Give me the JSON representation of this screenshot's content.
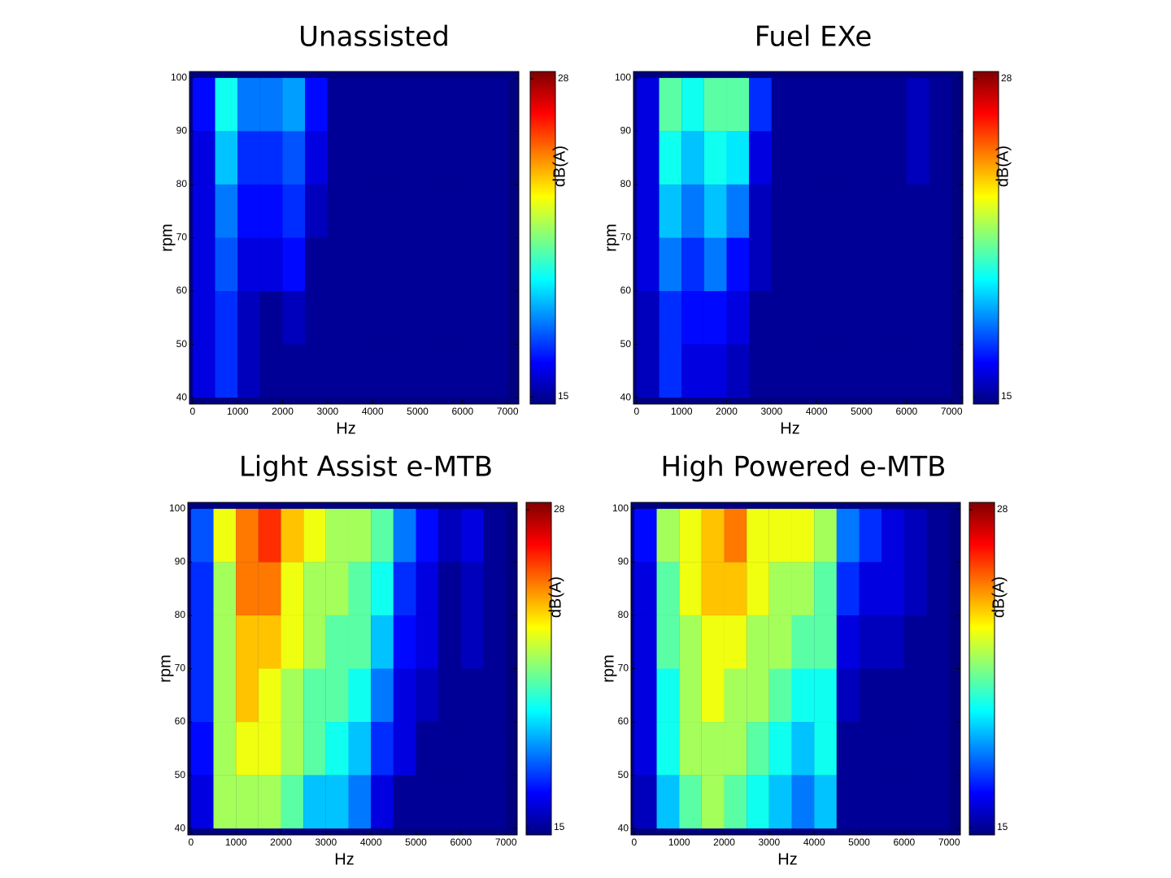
{
  "chart_data": [
    {
      "type": "heatmap",
      "title": "Unassisted",
      "x_label": "Hz",
      "y_label": "rpm",
      "colorbar_label": "dB(A)",
      "colormap": "jet",
      "x_edges": [
        0,
        500,
        1000,
        1500,
        2000,
        2500,
        3000,
        3500,
        4000,
        4500,
        5000,
        5500,
        6000,
        6500,
        7000
      ],
      "y_edges": [
        40,
        50,
        60,
        70,
        80,
        90,
        100
      ],
      "values": [
        [
          16,
          17,
          15.5,
          15,
          15,
          15,
          15,
          15,
          15,
          15,
          15,
          15,
          15,
          15
        ],
        [
          16,
          17,
          15.5,
          15,
          15.5,
          15,
          15,
          15,
          15,
          15,
          15,
          15,
          15,
          15
        ],
        [
          16,
          17.5,
          16,
          16,
          16.5,
          15,
          15,
          15,
          15,
          15,
          15,
          15,
          15,
          15
        ],
        [
          16,
          18,
          16.5,
          16.5,
          17,
          15.5,
          15,
          15,
          15,
          15,
          15,
          15,
          15,
          15
        ],
        [
          16,
          19,
          17,
          17,
          17.5,
          16,
          15,
          15,
          15,
          15,
          15,
          15,
          15,
          15
        ],
        [
          16.5,
          20,
          18,
          18,
          18.5,
          16.5,
          15,
          15,
          15,
          15,
          15,
          15,
          15,
          15
        ]
      ],
      "xlim": [
        -70,
        7250
      ],
      "xticks": [
        0,
        1000,
        2000,
        3000,
        4000,
        5000,
        6000,
        7000
      ],
      "ylim": [
        38.8,
        101.2
      ],
      "yticks": [
        40,
        50,
        60,
        70,
        80,
        90,
        100
      ],
      "clim": [
        14.7,
        28.3
      ],
      "cticks": [
        15,
        28
      ]
    },
    {
      "type": "heatmap",
      "title": "Fuel EXe",
      "x_label": "Hz",
      "y_label": "rpm",
      "colorbar_label": "dB(A)",
      "colormap": "jet",
      "x_edges": [
        0,
        500,
        1000,
        1500,
        2000,
        2500,
        3000,
        3500,
        4000,
        4500,
        5000,
        5500,
        6000,
        6500,
        7000
      ],
      "y_edges": [
        40,
        50,
        60,
        70,
        80,
        90,
        100
      ],
      "values": [
        [
          15.5,
          17,
          16,
          16,
          15.5,
          15,
          15,
          15,
          15,
          15,
          15,
          15,
          15,
          15
        ],
        [
          15.5,
          17,
          16.5,
          16.5,
          16,
          15,
          15,
          15,
          15,
          15,
          15,
          15,
          15,
          15
        ],
        [
          16,
          18,
          17,
          18,
          16.5,
          15.5,
          15,
          15,
          15,
          15,
          15,
          15,
          15,
          15
        ],
        [
          16,
          19,
          18,
          19,
          18,
          15.5,
          15,
          15,
          15,
          15,
          15,
          15,
          15,
          15
        ],
        [
          16,
          20,
          19,
          20,
          19.5,
          16,
          15,
          15,
          15,
          15,
          15,
          15,
          15.5,
          15
        ],
        [
          16,
          21,
          20,
          21,
          21,
          17,
          15,
          15,
          15,
          15,
          15,
          15,
          15.5,
          15
        ]
      ],
      "xlim": [
        -70,
        7250
      ],
      "xticks": [
        0,
        1000,
        2000,
        3000,
        4000,
        5000,
        6000,
        7000
      ],
      "ylim": [
        38.8,
        101.2
      ],
      "yticks": [
        40,
        50,
        60,
        70,
        80,
        90,
        100
      ],
      "clim": [
        14.7,
        28.3
      ],
      "cticks": [
        15,
        28
      ]
    },
    {
      "type": "heatmap",
      "title": "Light Assist e-MTB",
      "x_label": "Hz",
      "y_label": "rpm",
      "colorbar_label": "dB(A)",
      "colormap": "jet",
      "x_edges": [
        0,
        500,
        1000,
        1500,
        2000,
        2500,
        3000,
        3500,
        4000,
        4500,
        5000,
        5500,
        6000,
        6500,
        7000
      ],
      "y_edges": [
        40,
        50,
        60,
        70,
        80,
        90,
        100
      ],
      "values": [
        [
          16,
          22,
          22,
          22,
          21,
          19,
          19,
          18,
          16,
          15,
          15,
          15,
          15,
          15
        ],
        [
          16.5,
          22,
          23,
          23,
          22,
          21,
          20,
          19,
          17,
          16,
          15,
          15,
          15,
          15
        ],
        [
          17,
          22,
          24,
          23,
          22,
          21,
          21,
          20,
          18,
          16,
          15.5,
          15,
          15,
          15
        ],
        [
          17,
          22,
          24,
          24,
          23,
          22,
          21,
          21,
          19,
          16.5,
          16,
          15,
          15.5,
          15
        ],
        [
          17,
          22,
          25,
          25,
          23,
          22,
          22,
          21,
          20,
          17,
          16,
          15,
          15.5,
          15
        ],
        [
          17.5,
          23,
          25,
          26,
          24,
          23,
          22,
          22,
          21,
          18,
          16.5,
          15.5,
          16,
          15
        ]
      ],
      "xlim": [
        -70,
        7250
      ],
      "xticks": [
        0,
        1000,
        2000,
        3000,
        4000,
        5000,
        6000,
        7000
      ],
      "ylim": [
        38.8,
        101.2
      ],
      "yticks": [
        40,
        50,
        60,
        70,
        80,
        90,
        100
      ],
      "clim": [
        14.7,
        28.3
      ],
      "cticks": [
        15,
        28
      ]
    },
    {
      "type": "heatmap",
      "title": "High Powered e-MTB",
      "x_label": "Hz",
      "y_label": "rpm",
      "colorbar_label": "dB(A)",
      "colormap": "jet",
      "x_edges": [
        0,
        500,
        1000,
        1500,
        2000,
        2500,
        3000,
        3500,
        4000,
        4500,
        5000,
        5500,
        6000,
        6500,
        7000
      ],
      "y_edges": [
        40,
        50,
        60,
        70,
        80,
        90,
        100
      ],
      "values": [
        [
          15.5,
          19,
          21,
          22,
          21,
          20,
          19,
          18,
          19,
          15,
          15,
          15,
          15,
          15
        ],
        [
          16,
          20,
          22,
          22,
          22,
          21,
          20,
          19,
          20,
          15,
          15,
          15,
          15,
          15
        ],
        [
          16,
          20,
          22,
          23,
          22,
          22,
          21,
          20,
          20,
          15.5,
          15,
          15,
          15,
          15
        ],
        [
          16,
          21,
          22,
          23,
          23,
          22,
          22,
          21,
          21,
          16,
          15.5,
          15.5,
          15,
          15
        ],
        [
          16,
          21,
          23,
          24,
          24,
          23,
          22,
          22,
          21,
          17,
          16,
          16,
          15.5,
          15
        ],
        [
          16.5,
          22,
          23,
          24,
          25,
          23,
          23,
          23,
          22,
          18,
          17,
          16,
          15.5,
          15
        ]
      ],
      "xlim": [
        -70,
        7250
      ],
      "xticks": [
        0,
        1000,
        2000,
        3000,
        4000,
        5000,
        6000,
        7000
      ],
      "ylim": [
        38.8,
        101.2
      ],
      "yticks": [
        40,
        50,
        60,
        70,
        80,
        90,
        100
      ],
      "clim": [
        14.7,
        28.3
      ],
      "cticks": [
        15,
        28
      ]
    }
  ]
}
